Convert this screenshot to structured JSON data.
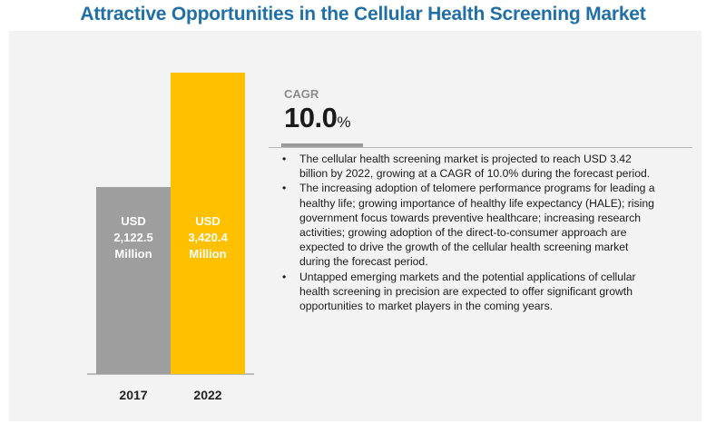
{
  "title": "Attractive Opportunities in the Cellular Health Screening Market",
  "chart_data": {
    "type": "bar",
    "categories": [
      "2017",
      "2022"
    ],
    "values": [
      2122.5,
      3420.4
    ],
    "value_labels": [
      [
        "USD",
        "2,122.5",
        "Million"
      ],
      [
        "USD",
        "3,420.4",
        "Million"
      ]
    ],
    "colors": [
      "#9e9e9e",
      "#ffc000"
    ],
    "ylim": [
      0,
      3420.4
    ],
    "grid": false
  },
  "cagr": {
    "label": "CAGR",
    "value": "10.0",
    "unit": "%"
  },
  "bullets": [
    "The cellular health screening market is projected to reach USD 3.42 billion by 2022, growing at a CAGR of 10.0% during the forecast period.",
    "The increasing adoption of telomere performance programs for leading a healthy life; growing importance of healthy life expectancy (HALE); rising government focus towards preventive healthcare; increasing research activities; growing adoption of the direct-to-consumer approach are expected to drive the growth of the cellular health screening market during the forecast period.",
    "Untapped emerging markets and the potential applications of cellular health screening in precision are expected to offer significant growth opportunities to market players in the coming years."
  ]
}
